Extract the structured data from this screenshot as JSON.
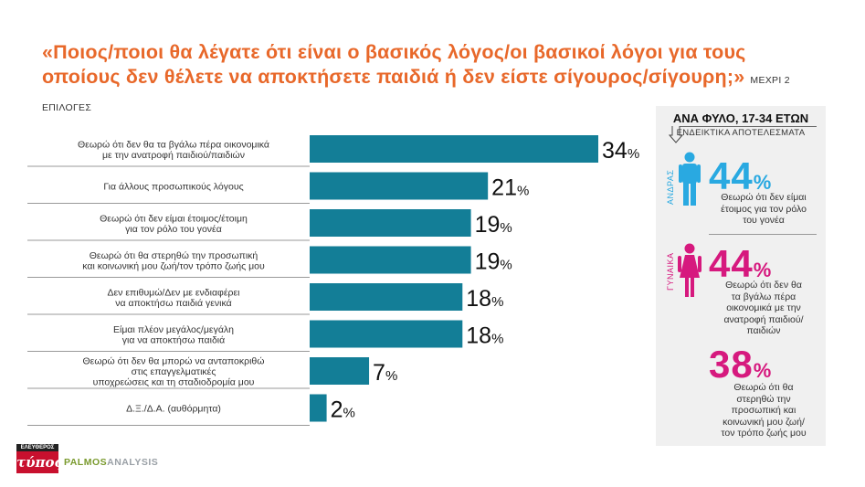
{
  "title": "«Ποιος/ποιοι θα λέγατε ότι είναι ο βασικός λόγος/οι βασικοί λόγοι για τους οποίους δεν θέλετε να αποκτήσετε παιδιά ή δεν είστε σίγουρος/σίγουρη;»",
  "title_note": "ΜΕΧΡΙ 2 ΕΠΙΛΟΓΕΣ",
  "colors": {
    "title": "#e8682a",
    "bar": "#137e97",
    "male": "#29a9e1",
    "female": "#d6197e"
  },
  "chart_data": {
    "type": "bar",
    "orientation": "horizontal",
    "categories": [
      [
        "Θεωρώ ότι δεν θα τα βγάλω πέρα οικονομικά",
        "με την ανατροφή παιδιού/παιδιών"
      ],
      [
        "Για άλλους προσωπικούς λόγους"
      ],
      [
        "Θεωρώ ότι δεν είμαι έτοιμος/έτοιμη",
        "για τον ρόλο του γονέα"
      ],
      [
        "Θεωρώ ότι θα στερηθώ την προσωπική",
        "και κοινωνική μου ζωή/τον τρόπο ζωής μου"
      ],
      [
        "Δεν επιθυμώ/Δεν με ενδιαφέρει",
        "να αποκτήσω παιδιά γενικά"
      ],
      [
        "Είμαι πλέον μεγάλος/μεγάλη",
        "για να αποκτήσω παιδιά"
      ],
      [
        "Θεωρώ ότι δεν θα μπορώ να ανταποκριθώ",
        "στις επαγγελματικές",
        "υποχρεώσεις και τη σταδιοδρομία μου"
      ],
      [
        "Δ.Ξ./Δ.Α. (αυθόρμητα)"
      ]
    ],
    "values": [
      34,
      21,
      19,
      19,
      18,
      18,
      7,
      2
    ],
    "unit": "%",
    "xlim": [
      0,
      34
    ]
  },
  "panel": {
    "title": "ΑΝΑ ΦΥΛΟ, 17-34 ΕΤΩΝ",
    "subtitle": "ΕΝΔΕΙΚΤΙΚΑ ΑΠΟΤΕΛΕΣΜΑΤΑ",
    "male": {
      "label": "ΑΝΔΡΑΣ",
      "value": "44",
      "pct": "%",
      "icon": "male-person-icon",
      "desc": [
        "Θεωρώ ότι δεν είμαι",
        "έτοιμος για τον ρόλο",
        "του γονέα"
      ]
    },
    "female": {
      "label": "ΓΥΝΑΙΚΑ",
      "icon": "female-person-icon",
      "items": [
        {
          "value": "44",
          "pct": "%",
          "desc": [
            "Θεωρώ ότι δεν θα",
            "τα βγάλω πέρα",
            "οικονομικά με την",
            "ανατροφή παιδιού/",
            "παιδιών"
          ]
        },
        {
          "value": "38",
          "pct": "%",
          "desc": [
            "Θεωρώ ότι θα",
            "στερηθώ την",
            "προσωπική και",
            " κοινωνική μου ζωή/",
            "τον τρόπο ζωής μου"
          ]
        }
      ]
    }
  },
  "logos": {
    "left": "τύπος",
    "left_top": "ΕΛΕΥΘΕΡΟΣ",
    "right_a": "PALMOS",
    "right_b": "ANALYSIS"
  }
}
